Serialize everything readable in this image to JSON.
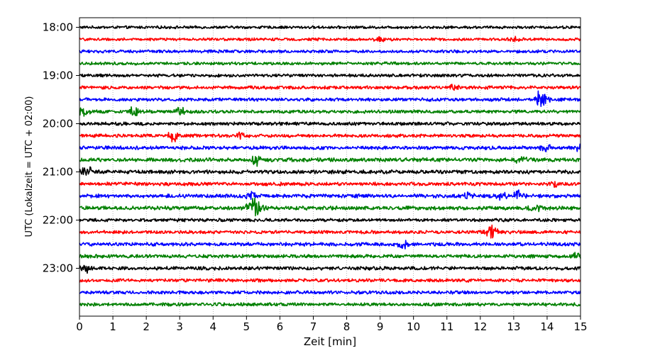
{
  "chart_data": {
    "type": "line",
    "title": "",
    "xlabel": "Zeit  [min]",
    "ylabel": "UTC (Lokalzeit = UTC + 02:00)",
    "xlim": [
      0,
      15
    ],
    "x_ticks": [
      "0",
      "1",
      "2",
      "3",
      "4",
      "5",
      "6",
      "7",
      "8",
      "9",
      "10",
      "11",
      "12",
      "13",
      "14",
      "15"
    ],
    "y_ticks": [
      "18:00",
      "19:00",
      "20:00",
      "21:00",
      "22:00",
      "23:00"
    ],
    "grid": "vertical dotted at each minute",
    "legend": "none",
    "trace_interval_min": 15,
    "colors": [
      "#000000",
      "#ff0000",
      "#0000ff",
      "#008000"
    ],
    "events": [
      {
        "trace": 1,
        "minute": 9.0,
        "amp": 0.5
      },
      {
        "trace": 1,
        "minute": 13.0,
        "amp": 0.4
      },
      {
        "trace": 5,
        "minute": 11.2,
        "amp": 0.6
      },
      {
        "trace": 6,
        "minute": 13.8,
        "amp": 1.6
      },
      {
        "trace": 7,
        "minute": 0.1,
        "amp": 0.8
      },
      {
        "trace": 7,
        "minute": 1.6,
        "amp": 0.9
      },
      {
        "trace": 7,
        "minute": 3.0,
        "amp": 0.6
      },
      {
        "trace": 9,
        "minute": 2.8,
        "amp": 0.9
      },
      {
        "trace": 9,
        "minute": 4.8,
        "amp": 0.5
      },
      {
        "trace": 10,
        "minute": 14.0,
        "amp": 0.6
      },
      {
        "trace": 10,
        "minute": 15.0,
        "amp": 0.8
      },
      {
        "trace": 11,
        "minute": 5.3,
        "amp": 0.8
      },
      {
        "trace": 11,
        "minute": 13.2,
        "amp": 0.6
      },
      {
        "trace": 12,
        "minute": 0.2,
        "amp": 0.9
      },
      {
        "trace": 13,
        "minute": 14.2,
        "amp": 0.5
      },
      {
        "trace": 14,
        "minute": 5.1,
        "amp": 0.8
      },
      {
        "trace": 14,
        "minute": 11.6,
        "amp": 0.6
      },
      {
        "trace": 14,
        "minute": 12.6,
        "amp": 0.7
      },
      {
        "trace": 14,
        "minute": 13.1,
        "amp": 0.9
      },
      {
        "trace": 15,
        "minute": 5.2,
        "amp": 1.8
      },
      {
        "trace": 15,
        "minute": 13.6,
        "amp": 0.7
      },
      {
        "trace": 17,
        "minute": 12.3,
        "amp": 1.1
      },
      {
        "trace": 18,
        "minute": 9.7,
        "amp": 1.0
      },
      {
        "trace": 20,
        "minute": 0.2,
        "amp": 0.8
      },
      {
        "trace": 19,
        "minute": 14.9,
        "amp": 0.6
      }
    ],
    "series": [
      {
        "label": "18:00",
        "color": "#000000",
        "noise_amp": 0.22
      },
      {
        "label": "18:15",
        "color": "#ff0000",
        "noise_amp": 0.22
      },
      {
        "label": "18:30",
        "color": "#0000ff",
        "noise_amp": 0.24
      },
      {
        "label": "18:45",
        "color": "#008000",
        "noise_amp": 0.24
      },
      {
        "label": "19:00",
        "color": "#000000",
        "noise_amp": 0.24
      },
      {
        "label": "19:15",
        "color": "#ff0000",
        "noise_amp": 0.26
      },
      {
        "label": "19:30",
        "color": "#0000ff",
        "noise_amp": 0.26
      },
      {
        "label": "19:45",
        "color": "#008000",
        "noise_amp": 0.26
      },
      {
        "label": "20:00",
        "color": "#000000",
        "noise_amp": 0.26
      },
      {
        "label": "20:15",
        "color": "#ff0000",
        "noise_amp": 0.26
      },
      {
        "label": "20:30",
        "color": "#0000ff",
        "noise_amp": 0.28
      },
      {
        "label": "20:45",
        "color": "#008000",
        "noise_amp": 0.3
      },
      {
        "label": "21:00",
        "color": "#000000",
        "noise_amp": 0.3
      },
      {
        "label": "21:15",
        "color": "#ff0000",
        "noise_amp": 0.28
      },
      {
        "label": "21:30",
        "color": "#0000ff",
        "noise_amp": 0.3
      },
      {
        "label": "21:45",
        "color": "#008000",
        "noise_amp": 0.3
      },
      {
        "label": "22:00",
        "color": "#000000",
        "noise_amp": 0.26
      },
      {
        "label": "22:15",
        "color": "#ff0000",
        "noise_amp": 0.26
      },
      {
        "label": "22:30",
        "color": "#0000ff",
        "noise_amp": 0.28
      },
      {
        "label": "22:45",
        "color": "#008000",
        "noise_amp": 0.28
      },
      {
        "label": "23:00",
        "color": "#000000",
        "noise_amp": 0.28
      },
      {
        "label": "23:15",
        "color": "#ff0000",
        "noise_amp": 0.26
      },
      {
        "label": "23:30",
        "color": "#0000ff",
        "noise_amp": 0.26
      },
      {
        "label": "23:45",
        "color": "#008000",
        "noise_amp": 0.26
      }
    ]
  }
}
